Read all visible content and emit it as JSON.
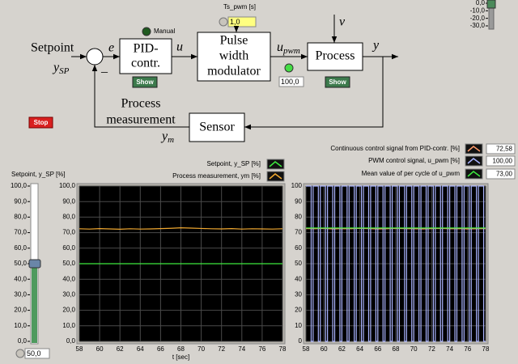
{
  "diagram": {
    "setpoint_label": "Setpoint",
    "setpoint_symbol": {
      "main": "y",
      "sub": "SP"
    },
    "error_symbol": "e",
    "minus_sign": "–",
    "pid_block": [
      "PID-",
      "contr."
    ],
    "manual_label": "Manual",
    "show_buttons": [
      "Show",
      "Show"
    ],
    "control_symbol": "u",
    "pwm_block": [
      "Pulse",
      "width",
      "modulator"
    ],
    "ts_pwm": {
      "label": "Ts_pwm [s]",
      "readout": {
        "value": 1,
        "label": "1,0"
      }
    },
    "pwm_symbol": {
      "main": "u",
      "sub": "pwm"
    },
    "pwm_indicator": {
      "readout": {
        "value": 100,
        "label": "100,0"
      }
    },
    "process_block": "Process",
    "disturbance_symbol": "v",
    "output_symbol": "y",
    "sensor_block": "Sensor",
    "measurement_label": [
      "Process",
      "measurement"
    ],
    "measurement_symbol": {
      "main": "y",
      "sub": "m"
    },
    "stop_button": "Stop"
  },
  "disturbance_slider": {
    "lim": [
      -30,
      0
    ],
    "value": 0,
    "ticks": [
      {
        "value": 0,
        "label": "0,0"
      },
      {
        "value": -10,
        "label": "-10,0"
      },
      {
        "value": -20,
        "label": "-20,0"
      },
      {
        "value": -30,
        "label": "-30,0"
      }
    ]
  },
  "setpoint_slider": {
    "title": "Setpoint, y_SP [%]",
    "lim": [
      0,
      100
    ],
    "ticks": [
      {
        "value": 0,
        "label": "0,0"
      },
      {
        "value": 10,
        "label": "10,0"
      },
      {
        "value": 20,
        "label": "20,0"
      },
      {
        "value": 30,
        "label": "30,0"
      },
      {
        "value": 40,
        "label": "40,0"
      },
      {
        "value": 50,
        "label": "50,0"
      },
      {
        "value": 60,
        "label": "60,0"
      },
      {
        "value": 70,
        "label": "70,0"
      },
      {
        "value": 80,
        "label": "80,0"
      },
      {
        "value": 90,
        "label": "90,0"
      },
      {
        "value": 100,
        "label": "100,0"
      }
    ],
    "readout": {
      "value": 50,
      "label": "50,0"
    }
  },
  "chart_data": [
    {
      "type": "line",
      "x_label": "t [sec]",
      "xlim": [
        58,
        78
      ],
      "xticks": [
        58,
        60,
        62,
        64,
        66,
        68,
        70,
        72,
        74,
        76,
        78
      ],
      "ylim": [
        0,
        100
      ],
      "grid": true,
      "yticks": [
        {
          "value": 0,
          "label": "0,0"
        },
        {
          "value": 10,
          "label": "10,0"
        },
        {
          "value": 20,
          "label": "20,0"
        },
        {
          "value": 30,
          "label": "30,0"
        },
        {
          "value": 40,
          "label": "40,0"
        },
        {
          "value": 50,
          "label": "50,0"
        },
        {
          "value": 60,
          "label": "60,0"
        },
        {
          "value": 70,
          "label": "70,0"
        },
        {
          "value": 80,
          "label": "80,0"
        },
        {
          "value": 90,
          "label": "90,0"
        },
        {
          "value": 100,
          "label": "100,0"
        }
      ],
      "series": [
        {
          "name": "Setpoint, y_SP [%]",
          "color": "#3ee83e",
          "x": [
            58,
            59,
            60,
            61,
            62,
            63,
            64,
            65,
            66,
            67,
            68,
            69,
            70,
            71,
            72,
            73,
            74,
            75,
            76,
            77,
            78
          ],
          "values": [
            50,
            50,
            50,
            50,
            50,
            50,
            50,
            50,
            50,
            50,
            50,
            50,
            50,
            50,
            50,
            50,
            50,
            50,
            50,
            50,
            50
          ]
        },
        {
          "name": "Process measurement, ym [%]",
          "color": "#f0a830",
          "x": [
            58,
            59,
            60,
            61,
            62,
            63,
            64,
            65,
            66,
            67,
            68,
            69,
            70,
            71,
            72,
            73,
            74,
            75,
            76,
            77,
            78
          ],
          "values": [
            72.5,
            72.3,
            72.6,
            72.4,
            72.2,
            72.5,
            72.3,
            72.4,
            72.6,
            72.8,
            73.1,
            72.9,
            72.7,
            72.5,
            72.4,
            72.6,
            72.3,
            72.5,
            72.4,
            72.3,
            72.5
          ]
        }
      ]
    },
    {
      "type": "line",
      "xlim": [
        58,
        78
      ],
      "xticks": [
        58,
        60,
        62,
        64,
        66,
        68,
        70,
        72,
        74,
        76,
        78
      ],
      "ylim": [
        0,
        100
      ],
      "yticks": [
        0,
        10,
        20,
        30,
        40,
        50,
        60,
        70,
        80,
        90,
        100
      ],
      "grid": true,
      "series": [
        {
          "name": "Continuous control signal from PID-contr. [%]",
          "color": "#ff9a6a",
          "readout": {
            "value": 72.58,
            "label": "72,58"
          },
          "x": [
            58,
            59,
            60,
            61,
            62,
            63,
            64,
            65,
            66,
            67,
            68,
            69,
            70,
            71,
            72,
            73,
            74,
            75,
            76,
            77,
            78
          ],
          "values": [
            72.6,
            72.5,
            72.7,
            72.4,
            72.6,
            72.5,
            72.8,
            72.6,
            72.4,
            72.5,
            72.7,
            72.6,
            72.5,
            72.4,
            72.6,
            72.7,
            72.5,
            72.6,
            72.4,
            72.5,
            72.58
          ]
        },
        {
          "name": "PWM control signal, u_pwm [%]",
          "color": "#aab4ff",
          "readout": {
            "value": 100,
            "label": "100,00"
          },
          "x": [
            58,
            58.58,
            58.58,
            58.8,
            58.8,
            59.38,
            59.38,
            59.6,
            59.6,
            60.18,
            60.18,
            60.4,
            60.4,
            60.98,
            60.98,
            61.2,
            61.2,
            61.78,
            61.78,
            62,
            62,
            62.58,
            62.58,
            62.8,
            62.8,
            63.38,
            63.38,
            63.6,
            63.6,
            64.18,
            64.18,
            64.4,
            64.4,
            64.98,
            64.98,
            65.2,
            65.2,
            65.78,
            65.78,
            66,
            66,
            66.58,
            66.58,
            66.8,
            66.8,
            67.38,
            67.38,
            67.6,
            67.6,
            68.18,
            68.18,
            68.4,
            68.4,
            68.98,
            68.98,
            69.2,
            69.2,
            69.78,
            69.78,
            70,
            70,
            70.58,
            70.58,
            70.8,
            70.8,
            71.38,
            71.38,
            71.6,
            71.6,
            72.18,
            72.18,
            72.4,
            72.4,
            72.98,
            72.98,
            73.2,
            73.2,
            73.78,
            73.78,
            74,
            74,
            74.58,
            74.58,
            74.8,
            74.8,
            75.38,
            75.38,
            75.6,
            75.6,
            76.18,
            76.18,
            76.4,
            76.4,
            76.98,
            76.98,
            77.2,
            77.2,
            77.78,
            77.78,
            78
          ],
          "values": [
            100,
            100,
            0,
            0,
            100,
            100,
            0,
            0,
            100,
            100,
            0,
            0,
            100,
            100,
            0,
            0,
            100,
            100,
            0,
            0,
            100,
            100,
            0,
            0,
            100,
            100,
            0,
            0,
            100,
            100,
            0,
            0,
            100,
            100,
            0,
            0,
            100,
            100,
            0,
            0,
            100,
            100,
            0,
            0,
            100,
            100,
            0,
            0,
            100,
            100,
            0,
            0,
            100,
            100,
            0,
            0,
            100,
            100,
            0,
            0,
            100,
            100,
            0,
            0,
            100,
            100,
            0,
            0,
            100,
            100,
            0,
            0,
            100,
            100,
            0,
            0,
            100,
            100,
            0,
            0,
            100,
            100,
            0,
            0,
            100,
            100,
            0,
            0,
            100,
            100,
            0,
            0,
            100,
            100,
            0,
            0,
            100,
            100,
            0,
            0
          ]
        },
        {
          "name": "Mean value of per cycle of u_pwm",
          "color": "#3ee83e",
          "readout": {
            "value": 73,
            "label": "73,00"
          },
          "x": [
            58,
            59,
            60,
            61,
            62,
            63,
            64,
            65,
            66,
            67,
            68,
            69,
            70,
            71,
            72,
            73,
            74,
            75,
            76,
            77,
            78
          ],
          "values": [
            73,
            73,
            73,
            73,
            73,
            73,
            73,
            73,
            73,
            73,
            73,
            73,
            73,
            73,
            73,
            73,
            73,
            73,
            73,
            73,
            73
          ]
        }
      ]
    }
  ]
}
